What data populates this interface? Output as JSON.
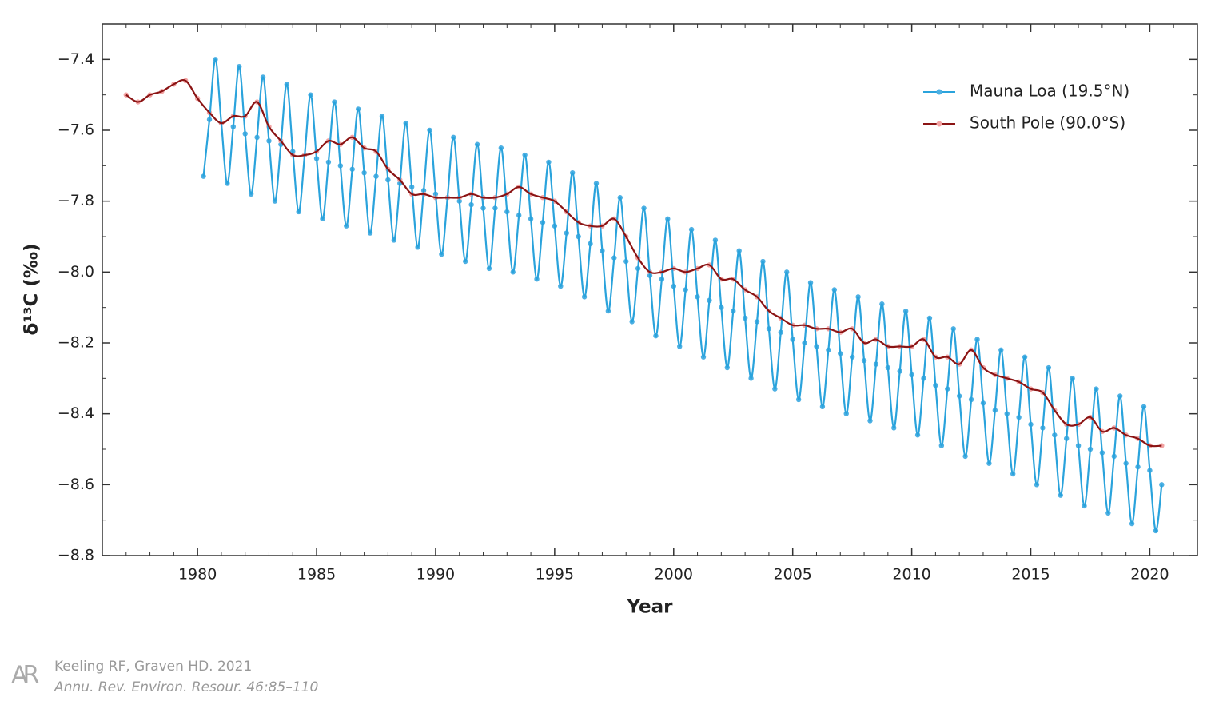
{
  "chart_data": {
    "type": "line",
    "xlabel": "Year",
    "ylabel": "δ¹³C (‰)",
    "xlim": [
      1976,
      2022
    ],
    "xticks": [
      1980,
      1985,
      1990,
      1995,
      2000,
      2005,
      2010,
      2015,
      2020
    ],
    "ylim": [
      -8.8,
      -7.3
    ],
    "yticks": [
      {
        "value": -7.4,
        "label": "−7.4"
      },
      {
        "value": -7.6,
        "label": "−7.6"
      },
      {
        "value": -7.8,
        "label": "−7.8"
      },
      {
        "value": -8.0,
        "label": "−8.0"
      },
      {
        "value": -8.2,
        "label": "−8.2"
      },
      {
        "value": -8.4,
        "label": "−8.4"
      },
      {
        "value": -8.6,
        "label": "−8.6"
      },
      {
        "value": -8.8,
        "label": "−8.8"
      }
    ],
    "legend": "upper right",
    "series": [
      {
        "name": "Mauna Loa (19.5°N)",
        "color": "#2aa3dc",
        "marker_color": "#4db0e3",
        "x": [
          1980.25,
          1980.5,
          1980.75,
          1981,
          1981.25,
          1981.5,
          1981.75,
          1982,
          1982.25,
          1982.5,
          1982.75,
          1983,
          1983.25,
          1983.5,
          1983.75,
          1984,
          1984.25,
          1984.5,
          1984.75,
          1985,
          1985.25,
          1985.5,
          1985.75,
          1986,
          1986.25,
          1986.5,
          1986.75,
          1987,
          1987.25,
          1987.5,
          1987.75,
          1988,
          1988.25,
          1988.5,
          1988.75,
          1989,
          1989.25,
          1989.5,
          1989.75,
          1990,
          1990.25,
          1990.5,
          1990.75,
          1991,
          1991.25,
          1991.5,
          1991.75,
          1992,
          1992.25,
          1992.5,
          1992.75,
          1993,
          1993.25,
          1993.5,
          1993.75,
          1994,
          1994.25,
          1994.5,
          1994.75,
          1995,
          1995.25,
          1995.5,
          1995.75,
          1996,
          1996.25,
          1996.5,
          1996.75,
          1997,
          1997.25,
          1997.5,
          1997.75,
          1998,
          1998.25,
          1998.5,
          1998.75,
          1999,
          1999.25,
          1999.5,
          1999.75,
          2000,
          2000.25,
          2000.5,
          2000.75,
          2001,
          2001.25,
          2001.5,
          2001.75,
          2002,
          2002.25,
          2002.5,
          2002.75,
          2003,
          2003.25,
          2003.5,
          2003.75,
          2004,
          2004.25,
          2004.5,
          2004.75,
          2005,
          2005.25,
          2005.5,
          2005.75,
          2006,
          2006.25,
          2006.5,
          2006.75,
          2007,
          2007.25,
          2007.5,
          2007.75,
          2008,
          2008.25,
          2008.5,
          2008.75,
          2009,
          2009.25,
          2009.5,
          2009.75,
          2010,
          2010.25,
          2010.5,
          2010.75,
          2011,
          2011.25,
          2011.5,
          2011.75,
          2012,
          2012.25,
          2012.5,
          2012.75,
          2013,
          2013.25,
          2013.5,
          2013.75,
          2014,
          2014.25,
          2014.5,
          2014.75,
          2015,
          2015.25,
          2015.5,
          2015.75,
          2016,
          2016.25,
          2016.5,
          2016.75,
          2017,
          2017.25,
          2017.5,
          2017.75,
          2018,
          2018.25,
          2018.5,
          2018.75,
          2019,
          2019.25,
          2019.5,
          2019.75,
          2020,
          2020.25,
          2020.5
        ],
        "values": [
          -7.73,
          -7.57,
          -7.4,
          -7.58,
          -7.75,
          -7.59,
          -7.42,
          -7.61,
          -7.78,
          -7.62,
          -7.45,
          -7.63,
          -7.8,
          -7.64,
          -7.47,
          -7.66,
          -7.83,
          -7.67,
          -7.5,
          -7.68,
          -7.85,
          -7.69,
          -7.52,
          -7.7,
          -7.87,
          -7.71,
          -7.54,
          -7.72,
          -7.89,
          -7.73,
          -7.56,
          -7.74,
          -7.91,
          -7.75,
          -7.58,
          -7.76,
          -7.93,
          -7.77,
          -7.6,
          -7.78,
          -7.95,
          -7.79,
          -7.62,
          -7.8,
          -7.97,
          -7.81,
          -7.64,
          -7.82,
          -7.99,
          -7.82,
          -7.65,
          -7.83,
          -8.0,
          -7.84,
          -7.67,
          -7.85,
          -8.02,
          -7.86,
          -7.69,
          -7.87,
          -8.04,
          -7.89,
          -7.72,
          -7.9,
          -8.07,
          -7.92,
          -7.75,
          -7.94,
          -8.11,
          -7.96,
          -7.79,
          -7.97,
          -8.14,
          -7.99,
          -7.82,
          -8.01,
          -8.18,
          -8.02,
          -7.85,
          -8.04,
          -8.21,
          -8.05,
          -7.88,
          -8.07,
          -8.24,
          -8.08,
          -7.91,
          -8.1,
          -8.27,
          -8.11,
          -7.94,
          -8.13,
          -8.3,
          -8.14,
          -7.97,
          -8.16,
          -8.33,
          -8.17,
          -8.0,
          -8.19,
          -8.36,
          -8.2,
          -8.03,
          -8.21,
          -8.38,
          -8.22,
          -8.05,
          -8.23,
          -8.4,
          -8.24,
          -8.07,
          -8.25,
          -8.42,
          -8.26,
          -8.09,
          -8.27,
          -8.44,
          -8.28,
          -8.11,
          -8.29,
          -8.46,
          -8.3,
          -8.13,
          -8.32,
          -8.49,
          -8.33,
          -8.16,
          -8.35,
          -8.52,
          -8.36,
          -8.19,
          -8.37,
          -8.54,
          -8.39,
          -8.22,
          -8.4,
          -8.57,
          -8.41,
          -8.24,
          -8.43,
          -8.6,
          -8.44,
          -8.27,
          -8.46,
          -8.63,
          -8.47,
          -8.3,
          -8.49,
          -8.66,
          -8.5,
          -8.33,
          -8.51,
          -8.68,
          -8.52,
          -8.35,
          -8.54,
          -8.71,
          -8.55,
          -8.38,
          -8.56,
          -8.73,
          -8.6
        ]
      },
      {
        "name": "South Pole (90.0°S)",
        "color": "#8b1414",
        "marker_color": "#f2a3a3",
        "x": [
          1977,
          1977.5,
          1978,
          1978.5,
          1979,
          1979.5,
          1980,
          1980.5,
          1981,
          1981.5,
          1982,
          1982.5,
          1983,
          1983.5,
          1984,
          1984.5,
          1985,
          1985.5,
          1986,
          1986.5,
          1987,
          1987.5,
          1988,
          1988.5,
          1989,
          1989.5,
          1990,
          1990.5,
          1991,
          1991.5,
          1992,
          1992.5,
          1993,
          1993.5,
          1994,
          1994.5,
          1995,
          1995.5,
          1996,
          1996.5,
          1997,
          1997.5,
          1998,
          1998.5,
          1999,
          1999.5,
          2000,
          2000.5,
          2001,
          2001.5,
          2002,
          2002.5,
          2003,
          2003.5,
          2004,
          2004.5,
          2005,
          2005.5,
          2006,
          2006.5,
          2007,
          2007.5,
          2008,
          2008.5,
          2009,
          2009.5,
          2010,
          2010.5,
          2011,
          2011.5,
          2012,
          2012.5,
          2013,
          2013.5,
          2014,
          2014.5,
          2015,
          2015.5,
          2016,
          2016.5,
          2017,
          2017.5,
          2018,
          2018.5,
          2019,
          2019.5,
          2020,
          2020.5
        ],
        "values": [
          -7.5,
          -7.52,
          -7.5,
          -7.49,
          -7.47,
          -7.46,
          -7.51,
          -7.55,
          -7.58,
          -7.56,
          -7.56,
          -7.52,
          -7.59,
          -7.63,
          -7.67,
          -7.67,
          -7.66,
          -7.63,
          -7.64,
          -7.62,
          -7.65,
          -7.66,
          -7.71,
          -7.74,
          -7.78,
          -7.78,
          -7.79,
          -7.79,
          -7.79,
          -7.78,
          -7.79,
          -7.79,
          -7.78,
          -7.76,
          -7.78,
          -7.79,
          -7.8,
          -7.83,
          -7.86,
          -7.87,
          -7.87,
          -7.85,
          -7.9,
          -7.96,
          -8.0,
          -8.0,
          -7.99,
          -8.0,
          -7.99,
          -7.98,
          -8.02,
          -8.02,
          -8.05,
          -8.07,
          -8.11,
          -8.13,
          -8.15,
          -8.15,
          -8.16,
          -8.16,
          -8.17,
          -8.16,
          -8.2,
          -8.19,
          -8.21,
          -8.21,
          -8.21,
          -8.19,
          -8.24,
          -8.24,
          -8.26,
          -8.22,
          -8.27,
          -8.29,
          -8.3,
          -8.31,
          -8.33,
          -8.34,
          -8.39,
          -8.43,
          -8.43,
          -8.41,
          -8.45,
          -8.44,
          -8.46,
          -8.47,
          -8.49,
          -8.49
        ]
      }
    ]
  },
  "footer": {
    "logo": "AR",
    "citation": "Keeling RF, Graven HD. 2021",
    "journal": "Annu. Rev. Environ. Resour. 46:85–110"
  }
}
